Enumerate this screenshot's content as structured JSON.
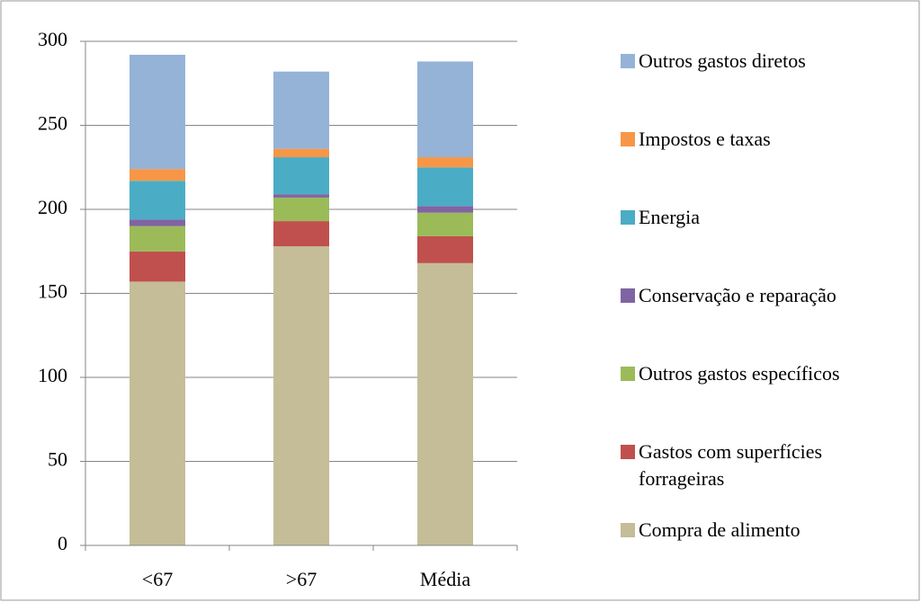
{
  "chart_data": {
    "type": "stacked_bar",
    "categories": [
      "<67",
      ">67",
      "Média"
    ],
    "series": [
      {
        "name": "Compra de alimento",
        "color": "#c4bd97",
        "values": [
          157,
          178,
          168
        ]
      },
      {
        "name": "Gastos com superfícies forrageiras",
        "color": "#c0504d",
        "values": [
          18,
          15,
          16
        ]
      },
      {
        "name": "Outros gastos específicos",
        "color": "#9bbb59",
        "values": [
          15,
          14,
          14
        ]
      },
      {
        "name": "Conservação e reparação",
        "color": "#8064a2",
        "values": [
          4,
          2,
          4
        ]
      },
      {
        "name": "Energia",
        "color": "#4bacc6",
        "values": [
          23,
          22,
          23
        ]
      },
      {
        "name": "Impostos e taxas",
        "color": "#f79646",
        "values": [
          7,
          5,
          6
        ]
      },
      {
        "name": "Outros gastos diretos",
        "color": "#95b3d7",
        "values": [
          68,
          46,
          57
        ]
      }
    ],
    "ylim": [
      0,
      300
    ],
    "yticks": [
      0,
      50,
      100,
      150,
      200,
      250,
      300
    ],
    "grid": true,
    "legend": "right"
  }
}
